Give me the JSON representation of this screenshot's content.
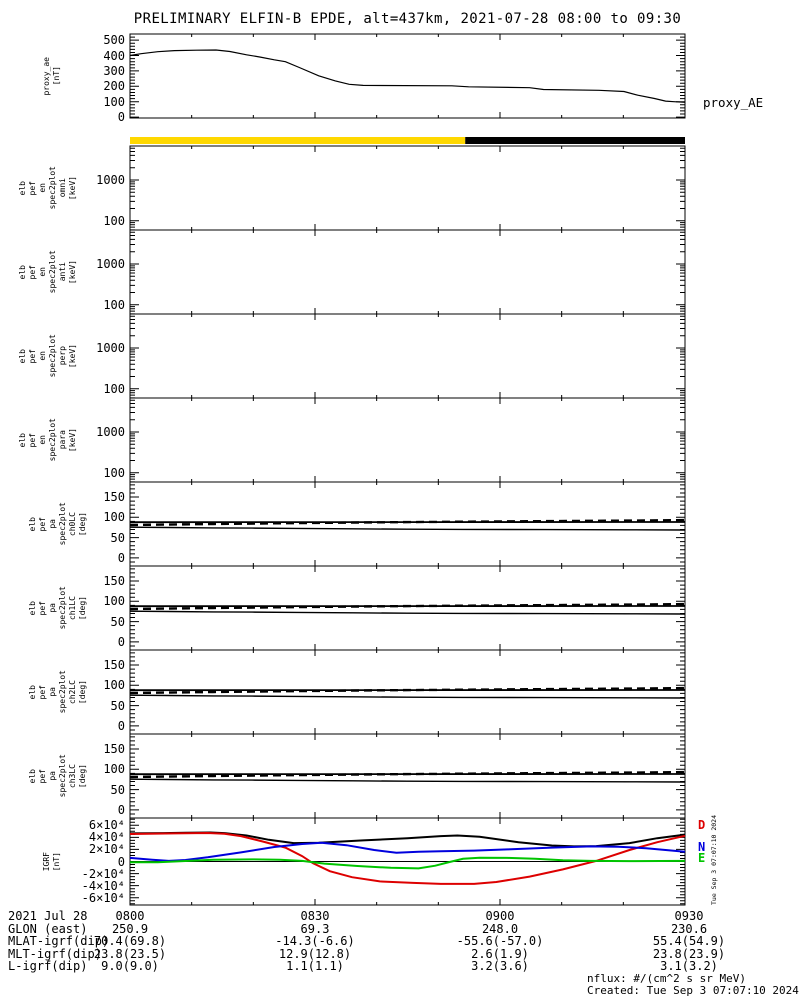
{
  "title": "PRELIMINARY ELFIN-B EPDE, alt=437km, 2021-07-28 08:00 to 09:30",
  "colors": {
    "axis": "#000000",
    "bar_yellow": "#ffd800",
    "bar_black": "#000000",
    "line_black": "#000000",
    "line_red": "#dd0000",
    "line_blue": "#0000dd",
    "line_green": "#00c400"
  },
  "time_bar": {
    "segments": [
      {
        "color": "#ffd800",
        "from": 0.0,
        "to": 0.604
      },
      {
        "color": "#000000",
        "from": 0.604,
        "to": 1.0
      }
    ]
  },
  "xaxis": {
    "tick_labels": [
      "0800",
      "0830",
      "0900",
      "0930"
    ],
    "minor_per_major": 3
  },
  "pitch_lines": [
    {
      "name": "90deg-line",
      "style": "solid",
      "width": 1.8,
      "points": [
        [
          0,
          88
        ],
        [
          1,
          88.5
        ]
      ]
    },
    {
      "name": "antiloss-cone-dashed",
      "style": "dashed",
      "width": 2.4,
      "points": [
        [
          0,
          81
        ],
        [
          0.15,
          83.5
        ],
        [
          0.3,
          85.8
        ],
        [
          0.45,
          87.6
        ],
        [
          0.6,
          89.2
        ],
        [
          0.75,
          90.6
        ],
        [
          0.9,
          92
        ],
        [
          1,
          93
        ]
      ]
    },
    {
      "name": "loss-cone",
      "style": "solid",
      "width": 1.4,
      "points": [
        [
          0,
          75.5
        ],
        [
          0.07,
          74.8
        ],
        [
          0.15,
          74
        ],
        [
          0.22,
          73.4
        ],
        [
          0.3,
          72.6
        ],
        [
          0.4,
          71.6
        ],
        [
          0.5,
          70.8
        ],
        [
          0.6,
          70.3
        ],
        [
          0.75,
          69.8
        ],
        [
          0.9,
          69.2
        ],
        [
          1,
          68.8
        ]
      ]
    }
  ],
  "chart_data": [
    {
      "id": "proxy_ae",
      "type": "line",
      "ylabel_lines": [
        "proxy_ae",
        "[nT]"
      ],
      "right_label": "proxy_AE",
      "yscale": "linear",
      "ylim": [
        -6,
        540
      ],
      "yminor_step": 20,
      "yticks": [
        {
          "v": 500,
          "label": "500"
        },
        {
          "v": 400,
          "label": "400"
        },
        {
          "v": 300,
          "label": "300"
        },
        {
          "v": 200,
          "label": "200"
        },
        {
          "v": 100,
          "label": "100"
        },
        {
          "v": 0,
          "label": "0"
        }
      ],
      "series": [
        {
          "name": "proxy_AE",
          "color": "#000000",
          "width": 1.2,
          "style": "solid",
          "points": [
            [
              0,
              400
            ],
            [
              0.02,
              412
            ],
            [
              0.05,
              425
            ],
            [
              0.08,
              432
            ],
            [
              0.12,
              435
            ],
            [
              0.155,
              436
            ],
            [
              0.18,
              426
            ],
            [
              0.21,
              405
            ],
            [
              0.235,
              390
            ],
            [
              0.26,
              372
            ],
            [
              0.28,
              360
            ],
            [
              0.305,
              322
            ],
            [
              0.34,
              268
            ],
            [
              0.37,
              235
            ],
            [
              0.395,
              213
            ],
            [
              0.42,
              206
            ],
            [
              0.58,
              203
            ],
            [
              0.61,
              197
            ],
            [
              0.72,
              191
            ],
            [
              0.745,
              179
            ],
            [
              0.845,
              174
            ],
            [
              0.89,
              166
            ],
            [
              0.915,
              142
            ],
            [
              0.945,
              121
            ],
            [
              0.965,
              104
            ],
            [
              0.98,
              100
            ],
            [
              1,
              96
            ]
          ]
        }
      ]
    },
    {
      "id": "elb_pef_en_spec2plot_omni",
      "type": "heatmap",
      "ylabel_lines": [
        "elb",
        "pef",
        "en",
        "spec2plot",
        "omni",
        "[keV]"
      ],
      "yscale": "log",
      "ylim": [
        59.5,
        6800
      ],
      "yticks": [
        {
          "v": 1000,
          "label": "1000"
        },
        {
          "v": 100,
          "label": "100"
        }
      ],
      "series": []
    },
    {
      "id": "elb_pef_en_spec2plot_anti",
      "type": "heatmap",
      "ylabel_lines": [
        "elb",
        "pef",
        "en",
        "spec2plot",
        "anti",
        "[keV]"
      ],
      "yscale": "log",
      "ylim": [
        59.5,
        6800
      ],
      "yticks": [
        {
          "v": 1000,
          "label": "1000"
        },
        {
          "v": 100,
          "label": "100"
        }
      ],
      "series": []
    },
    {
      "id": "elb_pef_en_spec2plot_perp",
      "type": "heatmap",
      "ylabel_lines": [
        "elb",
        "pef",
        "en",
        "spec2plot",
        "perp",
        "[keV]"
      ],
      "yscale": "log",
      "ylim": [
        59.5,
        6800
      ],
      "yticks": [
        {
          "v": 1000,
          "label": "1000"
        },
        {
          "v": 100,
          "label": "100"
        }
      ],
      "series": []
    },
    {
      "id": "elb_pef_en_spec2plot_para",
      "type": "heatmap",
      "ylabel_lines": [
        "elb",
        "pef",
        "en",
        "spec2plot",
        "para",
        "[keV]"
      ],
      "yscale": "log",
      "ylim": [
        59.5,
        6800
      ],
      "yticks": [
        {
          "v": 1000,
          "label": "1000"
        },
        {
          "v": 100,
          "label": "100"
        }
      ],
      "series": []
    },
    {
      "id": "elb_pef_pa_spec2plot_ch0LC",
      "type": "line",
      "ylabel_lines": [
        "elb",
        "pef",
        "pa",
        "spec2plot",
        "ch0LC",
        "[deg]"
      ],
      "yscale": "linear",
      "ylim": [
        -20,
        187
      ],
      "yminor_step": 10,
      "yticks": [
        {
          "v": 150,
          "label": "150"
        },
        {
          "v": 100,
          "label": "100"
        },
        {
          "v": 50,
          "label": "50"
        },
        {
          "v": 0,
          "label": "0"
        }
      ],
      "series_ref": "pitch_lines"
    },
    {
      "id": "elb_pef_pa_spec2plot_ch1LC",
      "type": "line",
      "ylabel_lines": [
        "elb",
        "pef",
        "pa",
        "spec2plot",
        "ch1LC",
        "[deg]"
      ],
      "yscale": "linear",
      "ylim": [
        -20,
        187
      ],
      "yminor_step": 10,
      "yticks": [
        {
          "v": 150,
          "label": "150"
        },
        {
          "v": 100,
          "label": "100"
        },
        {
          "v": 50,
          "label": "50"
        },
        {
          "v": 0,
          "label": "0"
        }
      ],
      "series_ref": "pitch_lines"
    },
    {
      "id": "elb_pef_pa_spec2plot_ch2LC",
      "type": "line",
      "ylabel_lines": [
        "elb",
        "pef",
        "pa",
        "spec2plot",
        "ch2LC",
        "[deg]"
      ],
      "yscale": "linear",
      "ylim": [
        -20,
        187
      ],
      "yminor_step": 10,
      "yticks": [
        {
          "v": 150,
          "label": "150"
        },
        {
          "v": 100,
          "label": "100"
        },
        {
          "v": 50,
          "label": "50"
        },
        {
          "v": 0,
          "label": "0"
        }
      ],
      "series_ref": "pitch_lines"
    },
    {
      "id": "elb_pef_pa_spec2plot_ch3LC",
      "type": "line",
      "ylabel_lines": [
        "elb",
        "pef",
        "pa",
        "spec2plot",
        "ch3LC",
        "[deg]"
      ],
      "yscale": "linear",
      "ylim": [
        -20,
        187
      ],
      "yminor_step": 10,
      "yticks": [
        {
          "v": 150,
          "label": "150"
        },
        {
          "v": 100,
          "label": "100"
        },
        {
          "v": 50,
          "label": "50"
        },
        {
          "v": 0,
          "label": "0"
        }
      ],
      "series_ref": "pitch_lines"
    },
    {
      "id": "igrf",
      "type": "line",
      "ylabel_lines": [
        "IGRF",
        "[nT]"
      ],
      "yscale": "linear",
      "ylim": [
        -72000,
        72000
      ],
      "yminor_step": 5000,
      "zero_line": true,
      "yticks": [
        {
          "v": 60000,
          "label": "6×10⁴"
        },
        {
          "v": 40000,
          "label": "4×10⁴"
        },
        {
          "v": 20000,
          "label": "2×10⁴"
        },
        {
          "v": 0,
          "label": "0"
        },
        {
          "v": -20000,
          "label": "-2×10⁴"
        },
        {
          "v": -40000,
          "label": "-4×10⁴"
        },
        {
          "v": -60000,
          "label": "-6×10⁴"
        }
      ],
      "legend": [
        {
          "label": "D",
          "color": "#dd0000"
        },
        {
          "label": "N",
          "color": "#0000dd"
        },
        {
          "label": "E",
          "color": "#00c400"
        }
      ],
      "side_text": "Tue Sep  3 07:07:10 2024",
      "series": [
        {
          "name": "Btotal",
          "color": "#000000",
          "width": 2,
          "style": "solid",
          "points": [
            [
              0,
              46500
            ],
            [
              0.06,
              47000
            ],
            [
              0.1,
              47500
            ],
            [
              0.145,
              48000
            ],
            [
              0.17,
              47000
            ],
            [
              0.21,
              43000
            ],
            [
              0.25,
              36000
            ],
            [
              0.295,
              30500
            ],
            [
              0.34,
              31000
            ],
            [
              0.42,
              35000
            ],
            [
              0.5,
              38500
            ],
            [
              0.56,
              42000
            ],
            [
              0.59,
              43000
            ],
            [
              0.63,
              41000
            ],
            [
              0.7,
              32000
            ],
            [
              0.76,
              26500
            ],
            [
              0.8,
              25000
            ],
            [
              0.84,
              25500
            ],
            [
              0.9,
              30500
            ],
            [
              0.95,
              38500
            ],
            [
              1,
              44500
            ]
          ]
        },
        {
          "name": "D",
          "color": "#dd0000",
          "width": 2,
          "style": "solid",
          "points": [
            [
              0,
              45500
            ],
            [
              0.08,
              46500
            ],
            [
              0.14,
              47200
            ],
            [
              0.17,
              46000
            ],
            [
              0.2,
              42000
            ],
            [
              0.24,
              33000
            ],
            [
              0.28,
              23000
            ],
            [
              0.31,
              9000
            ],
            [
              0.33,
              -3000
            ],
            [
              0.36,
              -16000
            ],
            [
              0.4,
              -26000
            ],
            [
              0.45,
              -33000
            ],
            [
              0.51,
              -35500
            ],
            [
              0.56,
              -37000
            ],
            [
              0.62,
              -37000
            ],
            [
              0.66,
              -34000
            ],
            [
              0.72,
              -25000
            ],
            [
              0.78,
              -13000
            ],
            [
              0.84,
              1000
            ],
            [
              0.9,
              19000
            ],
            [
              0.95,
              32000
            ],
            [
              1,
              42500
            ]
          ]
        },
        {
          "name": "N",
          "color": "#0000dd",
          "width": 2,
          "style": "solid",
          "points": [
            [
              0,
              6000
            ],
            [
              0.04,
              3000
            ],
            [
              0.07,
              1000
            ],
            [
              0.1,
              2500
            ],
            [
              0.14,
              7000
            ],
            [
              0.2,
              15000
            ],
            [
              0.26,
              24000
            ],
            [
              0.31,
              29000
            ],
            [
              0.345,
              31000
            ],
            [
              0.39,
              27000
            ],
            [
              0.44,
              19000
            ],
            [
              0.48,
              14500
            ],
            [
              0.52,
              16000
            ],
            [
              0.56,
              17000
            ],
            [
              0.62,
              18000
            ],
            [
              0.68,
              20000
            ],
            [
              0.76,
              23000
            ],
            [
              0.83,
              25000
            ],
            [
              0.88,
              24500
            ],
            [
              0.93,
              22000
            ],
            [
              1,
              16000
            ]
          ]
        },
        {
          "name": "E",
          "color": "#00c400",
          "width": 2,
          "style": "solid",
          "points": [
            [
              0,
              -1200
            ],
            [
              0.05,
              -1200
            ],
            [
              0.09,
              500
            ],
            [
              0.15,
              3000
            ],
            [
              0.22,
              3500
            ],
            [
              0.27,
              3000
            ],
            [
              0.31,
              1000
            ],
            [
              0.35,
              -3500
            ],
            [
              0.41,
              -7500
            ],
            [
              0.47,
              -10500
            ],
            [
              0.52,
              -11500
            ],
            [
              0.55,
              -7000
            ],
            [
              0.575,
              -1000
            ],
            [
              0.6,
              4500
            ],
            [
              0.63,
              6200
            ],
            [
              0.68,
              6000
            ],
            [
              0.73,
              4500
            ],
            [
              0.78,
              2000
            ],
            [
              0.83,
              1000
            ],
            [
              0.9,
              600
            ],
            [
              1,
              1000
            ]
          ]
        }
      ]
    }
  ],
  "bottom_table": {
    "rows": [
      {
        "header": "2021 Jul 28",
        "values": [
          "0800",
          "0830",
          "0900",
          "0930"
        ]
      },
      {
        "header": "GLON (east)",
        "values": [
          "250.9",
          "69.3",
          "248.0",
          "230.6"
        ]
      },
      {
        "header": "MLAT-igrf(dip)",
        "values": [
          "70.4(69.8)",
          "-14.3(-6.6)",
          "-55.6(-57.0)",
          "55.4(54.9)"
        ]
      },
      {
        "header": "MLT-igrf(dip)",
        "values": [
          "23.8(23.5)",
          "12.9(12.8)",
          "2.6(1.9)",
          "23.8(23.9)"
        ]
      },
      {
        "header": "L-igrf(dip)",
        "values": [
          "9.0(9.0)",
          "1.1(1.1)",
          "3.2(3.6)",
          "3.1(3.2)"
        ]
      }
    ]
  },
  "footer": {
    "nflux": "nflux: #/(cm^2 s sr MeV)",
    "created": "Created: Tue Sep  3 07:07:10 2024"
  }
}
